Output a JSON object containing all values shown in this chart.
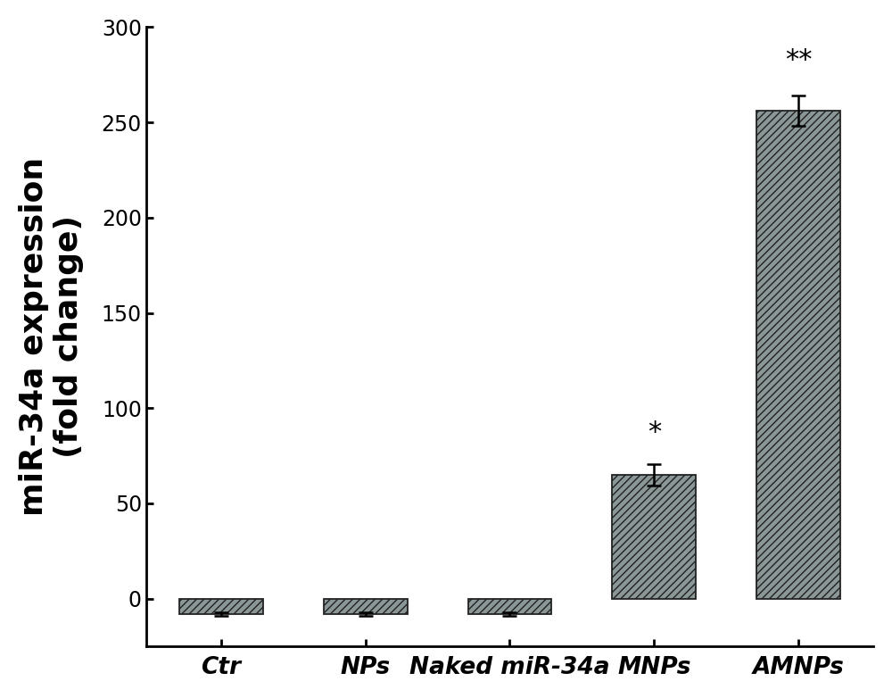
{
  "categories": [
    "Ctr",
    "NPs",
    "Naked miR-34a",
    "MNPs",
    "AMNPs"
  ],
  "values": [
    -8,
    -8,
    -8,
    65,
    256
  ],
  "errors": [
    1.0,
    1.0,
    1.0,
    5.5,
    8.0
  ],
  "bar_color": "#8B9696",
  "bar_edgecolor": "#222222",
  "hatch": "////",
  "ylabel_line1": "miR-34a expression",
  "ylabel_line2": "(fold change)",
  "ylim": [
    -25,
    300
  ],
  "yticks": [
    0,
    50,
    100,
    150,
    200,
    250,
    300
  ],
  "significance": [
    "",
    "",
    "",
    "*",
    "**"
  ],
  "sig_offsets": [
    10,
    10,
    10,
    10,
    12
  ],
  "bar_width": 0.58,
  "background_color": "#ffffff",
  "tick_fontsize": 17,
  "label_fontsize": 26,
  "sig_fontsize": 22,
  "xtick_fontsize": 19
}
